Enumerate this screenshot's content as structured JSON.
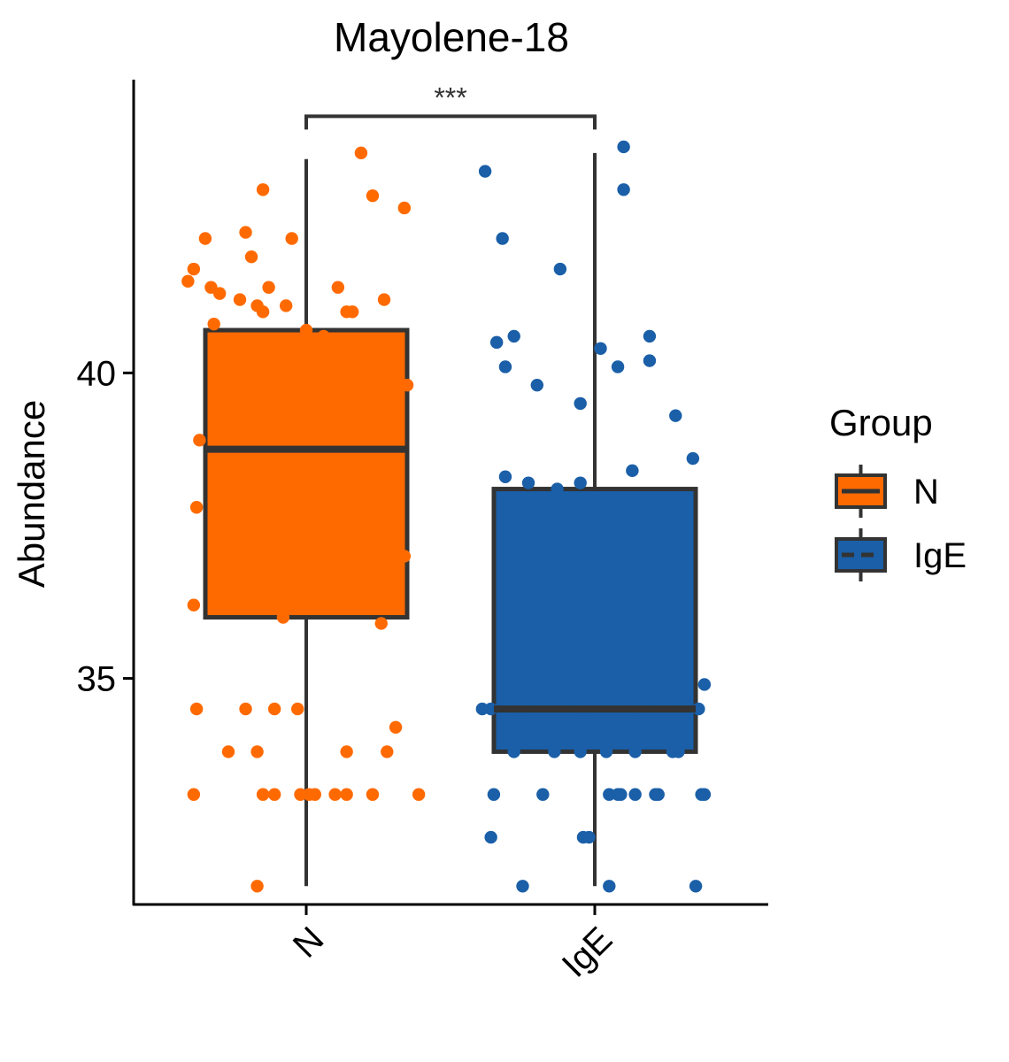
{
  "chart_data": {
    "type": "box",
    "title": "Mayolene-18",
    "xlabel": "",
    "ylabel": "Abundance",
    "categories": [
      "N",
      "IgE"
    ],
    "yticks": [
      35,
      40
    ],
    "ylim": [
      31.3,
      44.8
    ],
    "grid": false,
    "legend": {
      "title": "Group",
      "position": "right",
      "entries": [
        "N",
        "IgE"
      ]
    },
    "colors": {
      "N": "#FF6A00",
      "IgE": "#1A5FA8",
      "outline": "#333333"
    },
    "boxes": [
      {
        "name": "N",
        "whisker_low": 31.6,
        "q1": 36.0,
        "median": 38.75,
        "q3": 40.7,
        "whisker_high": 43.5
      },
      {
        "name": "IgE",
        "whisker_low": 31.6,
        "q1": 33.8,
        "median": 34.5,
        "q3": 38.1,
        "whisker_high": 43.6
      }
    ],
    "significance": {
      "label": "***",
      "between": [
        "N",
        "IgE"
      ],
      "y": 44.2
    },
    "points": {
      "N": [
        [
          -0.41,
          41.5
        ],
        [
          -0.39,
          41.7
        ],
        [
          -0.35,
          42.2
        ],
        [
          -0.33,
          41.4
        ],
        [
          -0.3,
          41.3
        ],
        [
          -0.23,
          41.2
        ],
        [
          -0.21,
          42.3
        ],
        [
          -0.19,
          41.9
        ],
        [
          -0.17,
          41.1
        ],
        [
          -0.15,
          41.0
        ],
        [
          -0.13,
          41.4
        ],
        [
          -0.07,
          41.1
        ],
        [
          -0.05,
          42.2
        ],
        [
          -0.15,
          43.0
        ],
        [
          0.19,
          43.6
        ],
        [
          0.23,
          42.9
        ],
        [
          0.34,
          42.7
        ],
        [
          0.11,
          41.4
        ],
        [
          0.14,
          41.0
        ],
        [
          0.16,
          41.0
        ],
        [
          0.27,
          41.2
        ],
        [
          0.0,
          40.7
        ],
        [
          0.06,
          40.6
        ],
        [
          -0.32,
          40.8
        ],
        [
          0.35,
          39.8
        ],
        [
          -0.37,
          38.9
        ],
        [
          -0.26,
          38.9
        ],
        [
          -0.18,
          38.8
        ],
        [
          -0.09,
          38.8
        ],
        [
          -0.04,
          38.8
        ],
        [
          -0.38,
          37.8
        ],
        [
          0.34,
          37.0
        ],
        [
          -0.39,
          36.2
        ],
        [
          -0.08,
          36.0
        ],
        [
          0.26,
          35.9
        ],
        [
          -0.38,
          34.5
        ],
        [
          -0.21,
          34.5
        ],
        [
          -0.11,
          34.5
        ],
        [
          -0.03,
          34.5
        ],
        [
          0.31,
          34.2
        ],
        [
          -0.27,
          33.8
        ],
        [
          -0.17,
          33.8
        ],
        [
          0.14,
          33.8
        ],
        [
          0.28,
          33.8
        ],
        [
          -0.39,
          33.1
        ],
        [
          -0.15,
          33.1
        ],
        [
          -0.11,
          33.1
        ],
        [
          -0.02,
          33.1
        ],
        [
          0.01,
          33.1
        ],
        [
          0.03,
          33.1
        ],
        [
          0.1,
          33.1
        ],
        [
          0.14,
          33.1
        ],
        [
          0.23,
          33.1
        ],
        [
          0.39,
          33.1
        ],
        [
          -0.17,
          31.6
        ]
      ],
      "IgE": [
        [
          -0.38,
          43.3
        ],
        [
          -0.32,
          42.2
        ],
        [
          0.1,
          43.7
        ],
        [
          0.1,
          43.0
        ],
        [
          -0.12,
          41.7
        ],
        [
          -0.34,
          40.5
        ],
        [
          -0.28,
          40.6
        ],
        [
          -0.31,
          40.1
        ],
        [
          0.02,
          40.4
        ],
        [
          0.08,
          40.1
        ],
        [
          0.19,
          40.6
        ],
        [
          0.19,
          40.2
        ],
        [
          -0.2,
          39.8
        ],
        [
          -0.05,
          39.5
        ],
        [
          0.28,
          39.3
        ],
        [
          -0.31,
          38.3
        ],
        [
          -0.23,
          38.2
        ],
        [
          -0.13,
          38.1
        ],
        [
          -0.05,
          38.2
        ],
        [
          0.13,
          38.4
        ],
        [
          0.34,
          38.6
        ],
        [
          0.38,
          34.9
        ],
        [
          -0.39,
          34.5
        ],
        [
          -0.36,
          34.5
        ],
        [
          -0.3,
          34.5
        ],
        [
          -0.25,
          34.5
        ],
        [
          -0.17,
          34.5
        ],
        [
          -0.11,
          34.5
        ],
        [
          -0.04,
          34.5
        ],
        [
          0.0,
          34.5
        ],
        [
          0.05,
          34.5
        ],
        [
          0.11,
          34.5
        ],
        [
          0.17,
          34.5
        ],
        [
          0.24,
          34.5
        ],
        [
          0.29,
          34.5
        ],
        [
          0.36,
          34.5
        ],
        [
          -0.28,
          33.8
        ],
        [
          -0.14,
          33.8
        ],
        [
          -0.05,
          33.8
        ],
        [
          0.04,
          33.8
        ],
        [
          0.14,
          33.8
        ],
        [
          0.27,
          33.8
        ],
        [
          0.29,
          33.8
        ],
        [
          -0.35,
          33.1
        ],
        [
          -0.18,
          33.1
        ],
        [
          0.05,
          33.1
        ],
        [
          0.08,
          33.1
        ],
        [
          0.09,
          33.1
        ],
        [
          0.14,
          33.1
        ],
        [
          0.21,
          33.1
        ],
        [
          0.22,
          33.1
        ],
        [
          0.37,
          33.1
        ],
        [
          0.38,
          33.1
        ],
        [
          -0.36,
          32.4
        ],
        [
          -0.04,
          32.4
        ],
        [
          -0.02,
          32.4
        ],
        [
          -0.25,
          31.6
        ],
        [
          0.05,
          31.6
        ],
        [
          0.35,
          31.6
        ]
      ]
    }
  }
}
